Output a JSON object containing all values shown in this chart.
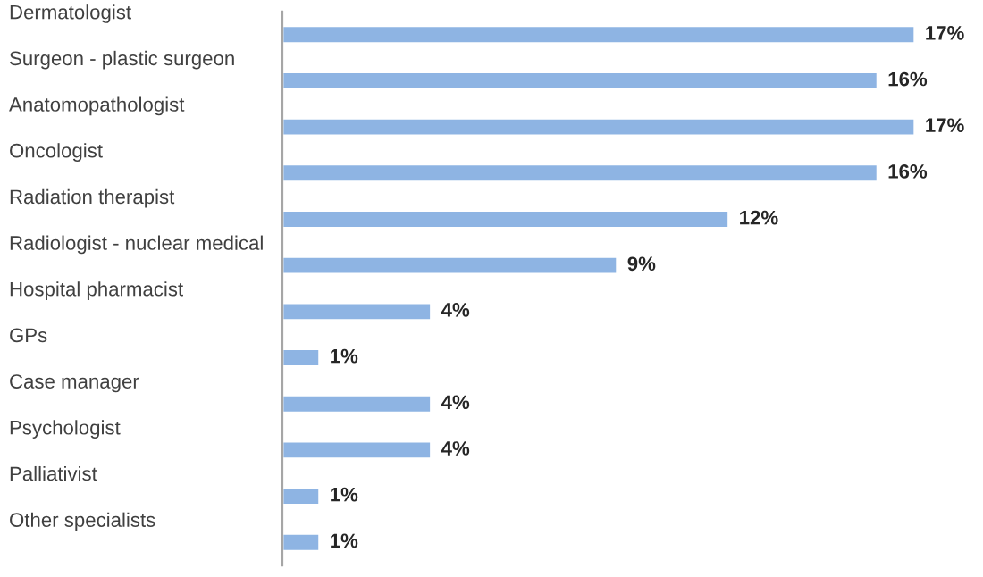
{
  "chart_data": {
    "type": "bar",
    "orientation": "horizontal",
    "categories": [
      "Dermatologist",
      "Surgeon - plastic surgeon",
      "Anatomopathologist",
      "Oncologist",
      "Radiation therapist",
      "Radiologist - nuclear medical",
      "Hospital pharmacist",
      "GPs",
      "Case manager",
      "Psychologist",
      "Palliativist",
      "Other specialists"
    ],
    "series": [
      {
        "color": "#8eb4e3",
        "values": [
          17,
          16,
          17,
          16,
          12,
          9,
          4,
          1,
          4,
          4,
          1,
          1
        ],
        "value_labels": [
          "17%",
          "16%",
          "17%",
          "16%",
          "12%",
          "9%",
          "4%",
          "1%",
          "4%",
          "4%",
          "1%",
          "1%"
        ]
      }
    ],
    "grid": false,
    "legend": false
  }
}
